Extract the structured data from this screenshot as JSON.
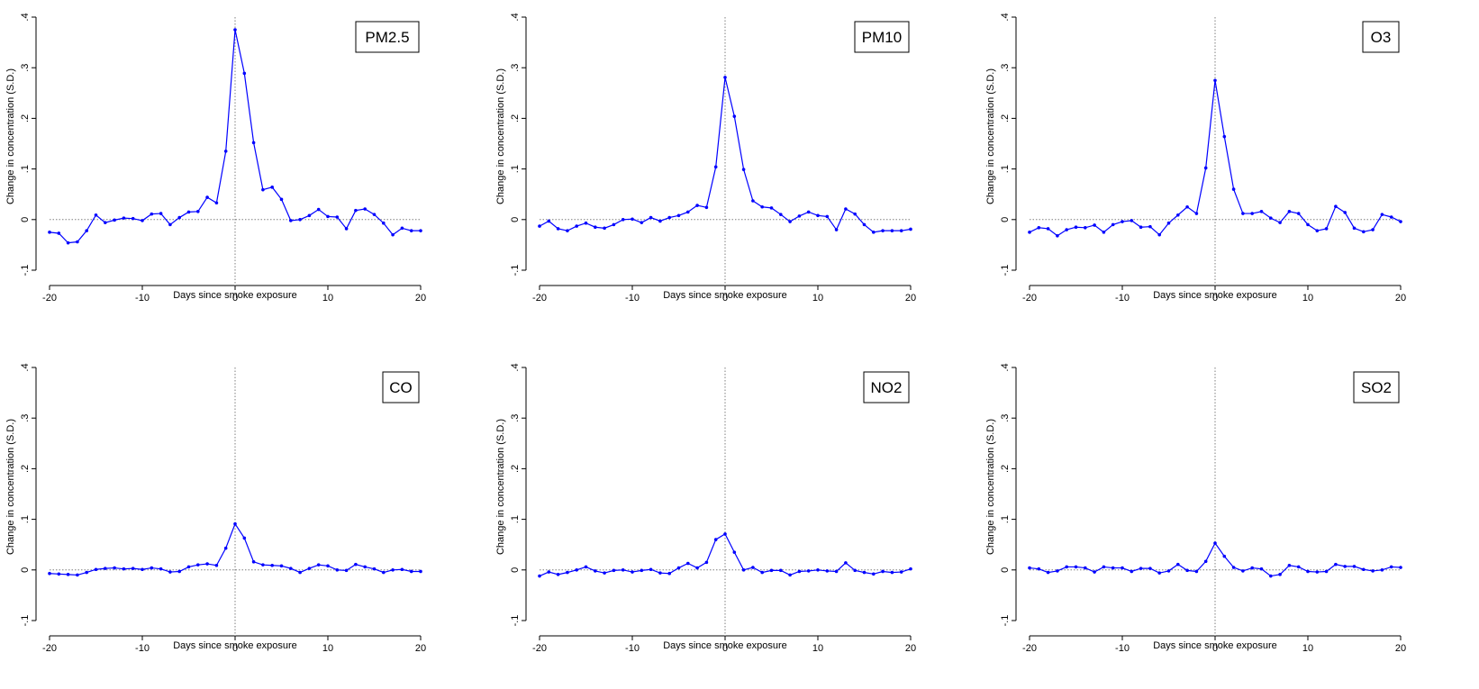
{
  "common": {
    "xlabel": "Days since smoke exposure",
    "ylabel": "Change in concentration (S.D.)",
    "xlim": [
      -20,
      20
    ],
    "ylim": [
      -0.1,
      0.4
    ],
    "x_ticks": [
      -20,
      -10,
      0,
      10,
      20
    ],
    "x_tick_labels": [
      "-20",
      "-10",
      "0",
      "10",
      "20"
    ],
    "y_ticks": [
      -0.1,
      0,
      0.1,
      0.2,
      0.3,
      0.4
    ],
    "y_tick_labels": [
      "-.1",
      "0",
      ".1",
      ".2",
      ".3",
      ".4"
    ],
    "series_color": "#0000ff",
    "reference_line_color": "#7f7f7f"
  },
  "chart_data": [
    {
      "type": "line",
      "title": "PM2.5",
      "x": [
        -20,
        -19,
        -18,
        -17,
        -16,
        -15,
        -14,
        -13,
        -12,
        -11,
        -10,
        -9,
        -8,
        -7,
        -6,
        -5,
        -4,
        -3,
        -2,
        -1,
        0,
        1,
        2,
        3,
        4,
        5,
        6,
        7,
        8,
        9,
        10,
        11,
        12,
        13,
        14,
        15,
        16,
        17,
        18,
        19,
        20
      ],
      "values": [
        -0.025,
        -0.027,
        -0.046,
        -0.044,
        -0.022,
        0.009,
        -0.006,
        -0.001,
        0.003,
        0.002,
        -0.002,
        0.011,
        0.012,
        -0.01,
        0.004,
        0.015,
        0.016,
        0.044,
        0.033,
        0.135,
        0.375,
        0.289,
        0.152,
        0.059,
        0.064,
        0.04,
        -0.002,
        0.0,
        0.008,
        0.02,
        0.006,
        0.005,
        -0.018,
        0.018,
        0.021,
        0.01,
        -0.007,
        -0.03,
        -0.017,
        -0.022,
        -0.022
      ]
    },
    {
      "type": "line",
      "title": "PM10",
      "x": [
        -20,
        -19,
        -18,
        -17,
        -16,
        -15,
        -14,
        -13,
        -12,
        -11,
        -10,
        -9,
        -8,
        -7,
        -6,
        -5,
        -4,
        -3,
        -2,
        -1,
        0,
        1,
        2,
        3,
        4,
        5,
        6,
        7,
        8,
        9,
        10,
        11,
        12,
        13,
        14,
        15,
        16,
        17,
        18,
        19,
        20
      ],
      "values": [
        -0.013,
        -0.003,
        -0.018,
        -0.022,
        -0.013,
        -0.007,
        -0.015,
        -0.017,
        -0.01,
        0.0,
        0.001,
        -0.006,
        0.004,
        -0.003,
        0.004,
        0.008,
        0.015,
        0.028,
        0.024,
        0.104,
        0.281,
        0.204,
        0.099,
        0.037,
        0.025,
        0.023,
        0.01,
        -0.004,
        0.007,
        0.015,
        0.008,
        0.006,
        -0.02,
        0.021,
        0.011,
        -0.01,
        -0.025,
        -0.022,
        -0.022,
        -0.022,
        -0.019
      ]
    },
    {
      "type": "line",
      "title": "O3",
      "x": [
        -20,
        -19,
        -18,
        -17,
        -16,
        -15,
        -14,
        -13,
        -12,
        -11,
        -10,
        -9,
        -8,
        -7,
        -6,
        -5,
        -4,
        -3,
        -2,
        -1,
        0,
        1,
        2,
        3,
        4,
        5,
        6,
        7,
        8,
        9,
        10,
        11,
        12,
        13,
        14,
        15,
        16,
        17,
        18,
        19,
        20
      ],
      "values": [
        -0.025,
        -0.016,
        -0.018,
        -0.032,
        -0.02,
        -0.015,
        -0.016,
        -0.011,
        -0.025,
        -0.01,
        -0.004,
        -0.002,
        -0.015,
        -0.014,
        -0.03,
        -0.007,
        0.009,
        0.025,
        0.012,
        0.102,
        0.275,
        0.164,
        0.06,
        0.012,
        0.012,
        0.016,
        0.003,
        -0.006,
        0.016,
        0.012,
        -0.01,
        -0.022,
        -0.018,
        0.026,
        0.014,
        -0.017,
        -0.024,
        -0.02,
        0.01,
        0.005,
        -0.004
      ]
    },
    {
      "type": "line",
      "title": "CO",
      "x": [
        -20,
        -19,
        -18,
        -17,
        -16,
        -15,
        -14,
        -13,
        -12,
        -11,
        -10,
        -9,
        -8,
        -7,
        -6,
        -5,
        -4,
        -3,
        -2,
        -1,
        0,
        1,
        2,
        3,
        4,
        5,
        6,
        7,
        8,
        9,
        10,
        11,
        12,
        13,
        14,
        15,
        16,
        17,
        18,
        19,
        20
      ],
      "values": [
        -0.007,
        -0.008,
        -0.009,
        -0.01,
        -0.005,
        0.001,
        0.003,
        0.004,
        0.002,
        0.003,
        0.001,
        0.004,
        0.002,
        -0.004,
        -0.003,
        0.006,
        0.01,
        0.012,
        0.009,
        0.043,
        0.091,
        0.063,
        0.016,
        0.01,
        0.009,
        0.008,
        0.003,
        -0.005,
        0.003,
        0.01,
        0.008,
        0.0,
        -0.001,
        0.011,
        0.006,
        0.002,
        -0.005,
        0.0,
        0.001,
        -0.003,
        -0.003
      ]
    },
    {
      "type": "line",
      "title": "NO2",
      "x": [
        -20,
        -19,
        -18,
        -17,
        -16,
        -15,
        -14,
        -13,
        -12,
        -11,
        -10,
        -9,
        -8,
        -7,
        -6,
        -5,
        -4,
        -3,
        -2,
        -1,
        0,
        1,
        2,
        3,
        4,
        5,
        6,
        7,
        8,
        9,
        10,
        11,
        12,
        13,
        14,
        15,
        16,
        17,
        18,
        19,
        20
      ],
      "values": [
        -0.012,
        -0.004,
        -0.009,
        -0.005,
        0.0,
        0.006,
        -0.002,
        -0.006,
        -0.001,
        0.0,
        -0.004,
        -0.001,
        0.001,
        -0.006,
        -0.007,
        0.004,
        0.013,
        0.004,
        0.015,
        0.06,
        0.071,
        0.035,
        0.0,
        0.005,
        -0.005,
        -0.001,
        -0.001,
        -0.01,
        -0.003,
        -0.002,
        0.0,
        -0.002,
        -0.003,
        0.014,
        -0.001,
        -0.005,
        -0.008,
        -0.003,
        -0.005,
        -0.004,
        0.002
      ]
    },
    {
      "type": "line",
      "title": "SO2",
      "x": [
        -20,
        -19,
        -18,
        -17,
        -16,
        -15,
        -14,
        -13,
        -12,
        -11,
        -10,
        -9,
        -8,
        -7,
        -6,
        -5,
        -4,
        -3,
        -2,
        -1,
        0,
        1,
        2,
        3,
        4,
        5,
        6,
        7,
        8,
        9,
        10,
        11,
        12,
        13,
        14,
        15,
        16,
        17,
        18,
        19,
        20
      ],
      "values": [
        0.004,
        0.002,
        -0.005,
        -0.002,
        0.006,
        0.006,
        0.004,
        -0.004,
        0.006,
        0.004,
        0.004,
        -0.003,
        0.003,
        0.003,
        -0.006,
        -0.002,
        0.011,
        -0.001,
        -0.003,
        0.017,
        0.053,
        0.027,
        0.005,
        -0.002,
        0.004,
        0.002,
        -0.012,
        -0.009,
        0.009,
        0.006,
        -0.003,
        -0.004,
        -0.003,
        0.011,
        0.007,
        0.007,
        0.001,
        -0.002,
        0.0,
        0.006,
        0.005
      ]
    }
  ]
}
